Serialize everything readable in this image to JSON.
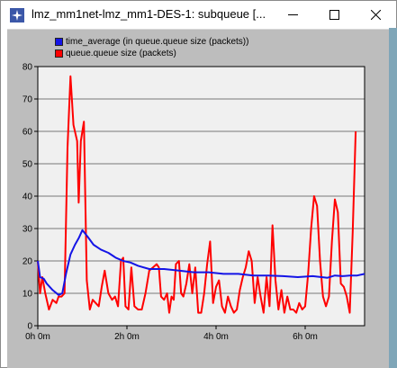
{
  "window": {
    "title": "lmz_mm1net-lmz_mm1-DES-1: subqueue [..."
  },
  "controls": {
    "minimize_icon": "minimize-icon",
    "maximize_icon": "maximize-icon",
    "close_icon": "close-icon"
  },
  "colors": {
    "plot_bg": "#f0f0f0",
    "frame_bg": "#bdbdbd",
    "series_blue": "#1414e6",
    "series_red": "#ff0000"
  },
  "legend": [
    {
      "label": "time_average (in queue.queue size (packets))",
      "color": "#1414e6"
    },
    {
      "label": "queue.queue size (packets)",
      "color": "#ff0000"
    }
  ],
  "chart_data": {
    "type": "line",
    "x_tick_labels": [
      "0h 0m",
      "2h 0m",
      "4h 0m",
      "6h 0m"
    ],
    "x_ticks_minutes": [
      0,
      120,
      240,
      360
    ],
    "xlim": [
      0,
      440
    ],
    "y_tick_labels": [
      "0",
      "10",
      "20",
      "30",
      "40",
      "50",
      "60",
      "70",
      "80"
    ],
    "ylim": [
      0,
      80
    ],
    "grid": true,
    "legend_position": "top-left",
    "series": [
      {
        "name": "time_average (in queue.queue size (packets))",
        "color": "#1414e6",
        "points": [
          [
            0,
            20
          ],
          [
            3,
            15
          ],
          [
            8,
            14.5
          ],
          [
            12,
            13
          ],
          [
            20,
            11
          ],
          [
            28,
            9.5
          ],
          [
            33,
            10
          ],
          [
            38,
            16
          ],
          [
            44,
            22
          ],
          [
            50,
            25
          ],
          [
            55,
            27
          ],
          [
            60,
            29.5
          ],
          [
            67,
            27.5
          ],
          [
            75,
            25
          ],
          [
            85,
            23.5
          ],
          [
            95,
            22.5
          ],
          [
            105,
            21
          ],
          [
            115,
            20
          ],
          [
            125,
            19.5
          ],
          [
            135,
            18.5
          ],
          [
            150,
            17.5
          ],
          [
            170,
            17.5
          ],
          [
            190,
            17
          ],
          [
            210,
            16.5
          ],
          [
            230,
            16.5
          ],
          [
            250,
            16
          ],
          [
            270,
            16
          ],
          [
            290,
            15.5
          ],
          [
            310,
            15.5
          ],
          [
            330,
            15.3
          ],
          [
            350,
            15
          ],
          [
            370,
            15.3
          ],
          [
            390,
            14.8
          ],
          [
            400,
            15.5
          ],
          [
            410,
            15.3
          ],
          [
            420,
            15.5
          ],
          [
            430,
            15.5
          ],
          [
            440,
            16
          ]
        ]
      },
      {
        "name": "queue.queue size (packets)",
        "color": "#ff0000",
        "points": [
          [
            0,
            20
          ],
          [
            3,
            10
          ],
          [
            6,
            15
          ],
          [
            10,
            10
          ],
          [
            15,
            5
          ],
          [
            20,
            8
          ],
          [
            25,
            7
          ],
          [
            28,
            9
          ],
          [
            32,
            9
          ],
          [
            36,
            10
          ],
          [
            40,
            55
          ],
          [
            44,
            77
          ],
          [
            48,
            62
          ],
          [
            53,
            57
          ],
          [
            55,
            38
          ],
          [
            58,
            57
          ],
          [
            62,
            63
          ],
          [
            66,
            14
          ],
          [
            70,
            5
          ],
          [
            74,
            8
          ],
          [
            78,
            7
          ],
          [
            82,
            6
          ],
          [
            86,
            12
          ],
          [
            90,
            17
          ],
          [
            95,
            10
          ],
          [
            100,
            8
          ],
          [
            104,
            9
          ],
          [
            108,
            6
          ],
          [
            112,
            20
          ],
          [
            115,
            21
          ],
          [
            118,
            6
          ],
          [
            122,
            5
          ],
          [
            126,
            18
          ],
          [
            130,
            6
          ],
          [
            135,
            5
          ],
          [
            140,
            5
          ],
          [
            145,
            10
          ],
          [
            150,
            17
          ],
          [
            155,
            18
          ],
          [
            160,
            19
          ],
          [
            163,
            18
          ],
          [
            166,
            9
          ],
          [
            170,
            8
          ],
          [
            174,
            10
          ],
          [
            177,
            4
          ],
          [
            180,
            9
          ],
          [
            183,
            8
          ],
          [
            186,
            19
          ],
          [
            190,
            20
          ],
          [
            193,
            10
          ],
          [
            196,
            9
          ],
          [
            200,
            13
          ],
          [
            204,
            19
          ],
          [
            208,
            10
          ],
          [
            212,
            18
          ],
          [
            216,
            4
          ],
          [
            220,
            4
          ],
          [
            224,
            10
          ],
          [
            228,
            19
          ],
          [
            232,
            26
          ],
          [
            236,
            7
          ],
          [
            240,
            12
          ],
          [
            244,
            14
          ],
          [
            248,
            6
          ],
          [
            252,
            4
          ],
          [
            256,
            9
          ],
          [
            260,
            6
          ],
          [
            264,
            4
          ],
          [
            268,
            5
          ],
          [
            272,
            11
          ],
          [
            276,
            15
          ],
          [
            280,
            18
          ],
          [
            284,
            23
          ],
          [
            288,
            20
          ],
          [
            292,
            7
          ],
          [
            296,
            15
          ],
          [
            300,
            9
          ],
          [
            304,
            4
          ],
          [
            308,
            15
          ],
          [
            312,
            6
          ],
          [
            316,
            31
          ],
          [
            320,
            14
          ],
          [
            324,
            5
          ],
          [
            328,
            11
          ],
          [
            332,
            4
          ],
          [
            336,
            9
          ],
          [
            340,
            5
          ],
          [
            344,
            5
          ],
          [
            348,
            4
          ],
          [
            352,
            7
          ],
          [
            356,
            5
          ],
          [
            360,
            6
          ],
          [
            364,
            16
          ],
          [
            368,
            30
          ],
          [
            372,
            40
          ],
          [
            376,
            37
          ],
          [
            380,
            20
          ],
          [
            384,
            9
          ],
          [
            388,
            6
          ],
          [
            392,
            9
          ],
          [
            396,
            26
          ],
          [
            400,
            39
          ],
          [
            404,
            35
          ],
          [
            408,
            13
          ],
          [
            412,
            12
          ],
          [
            416,
            9
          ],
          [
            420,
            4
          ],
          [
            424,
            29
          ],
          [
            428,
            60
          ]
        ]
      }
    ]
  }
}
